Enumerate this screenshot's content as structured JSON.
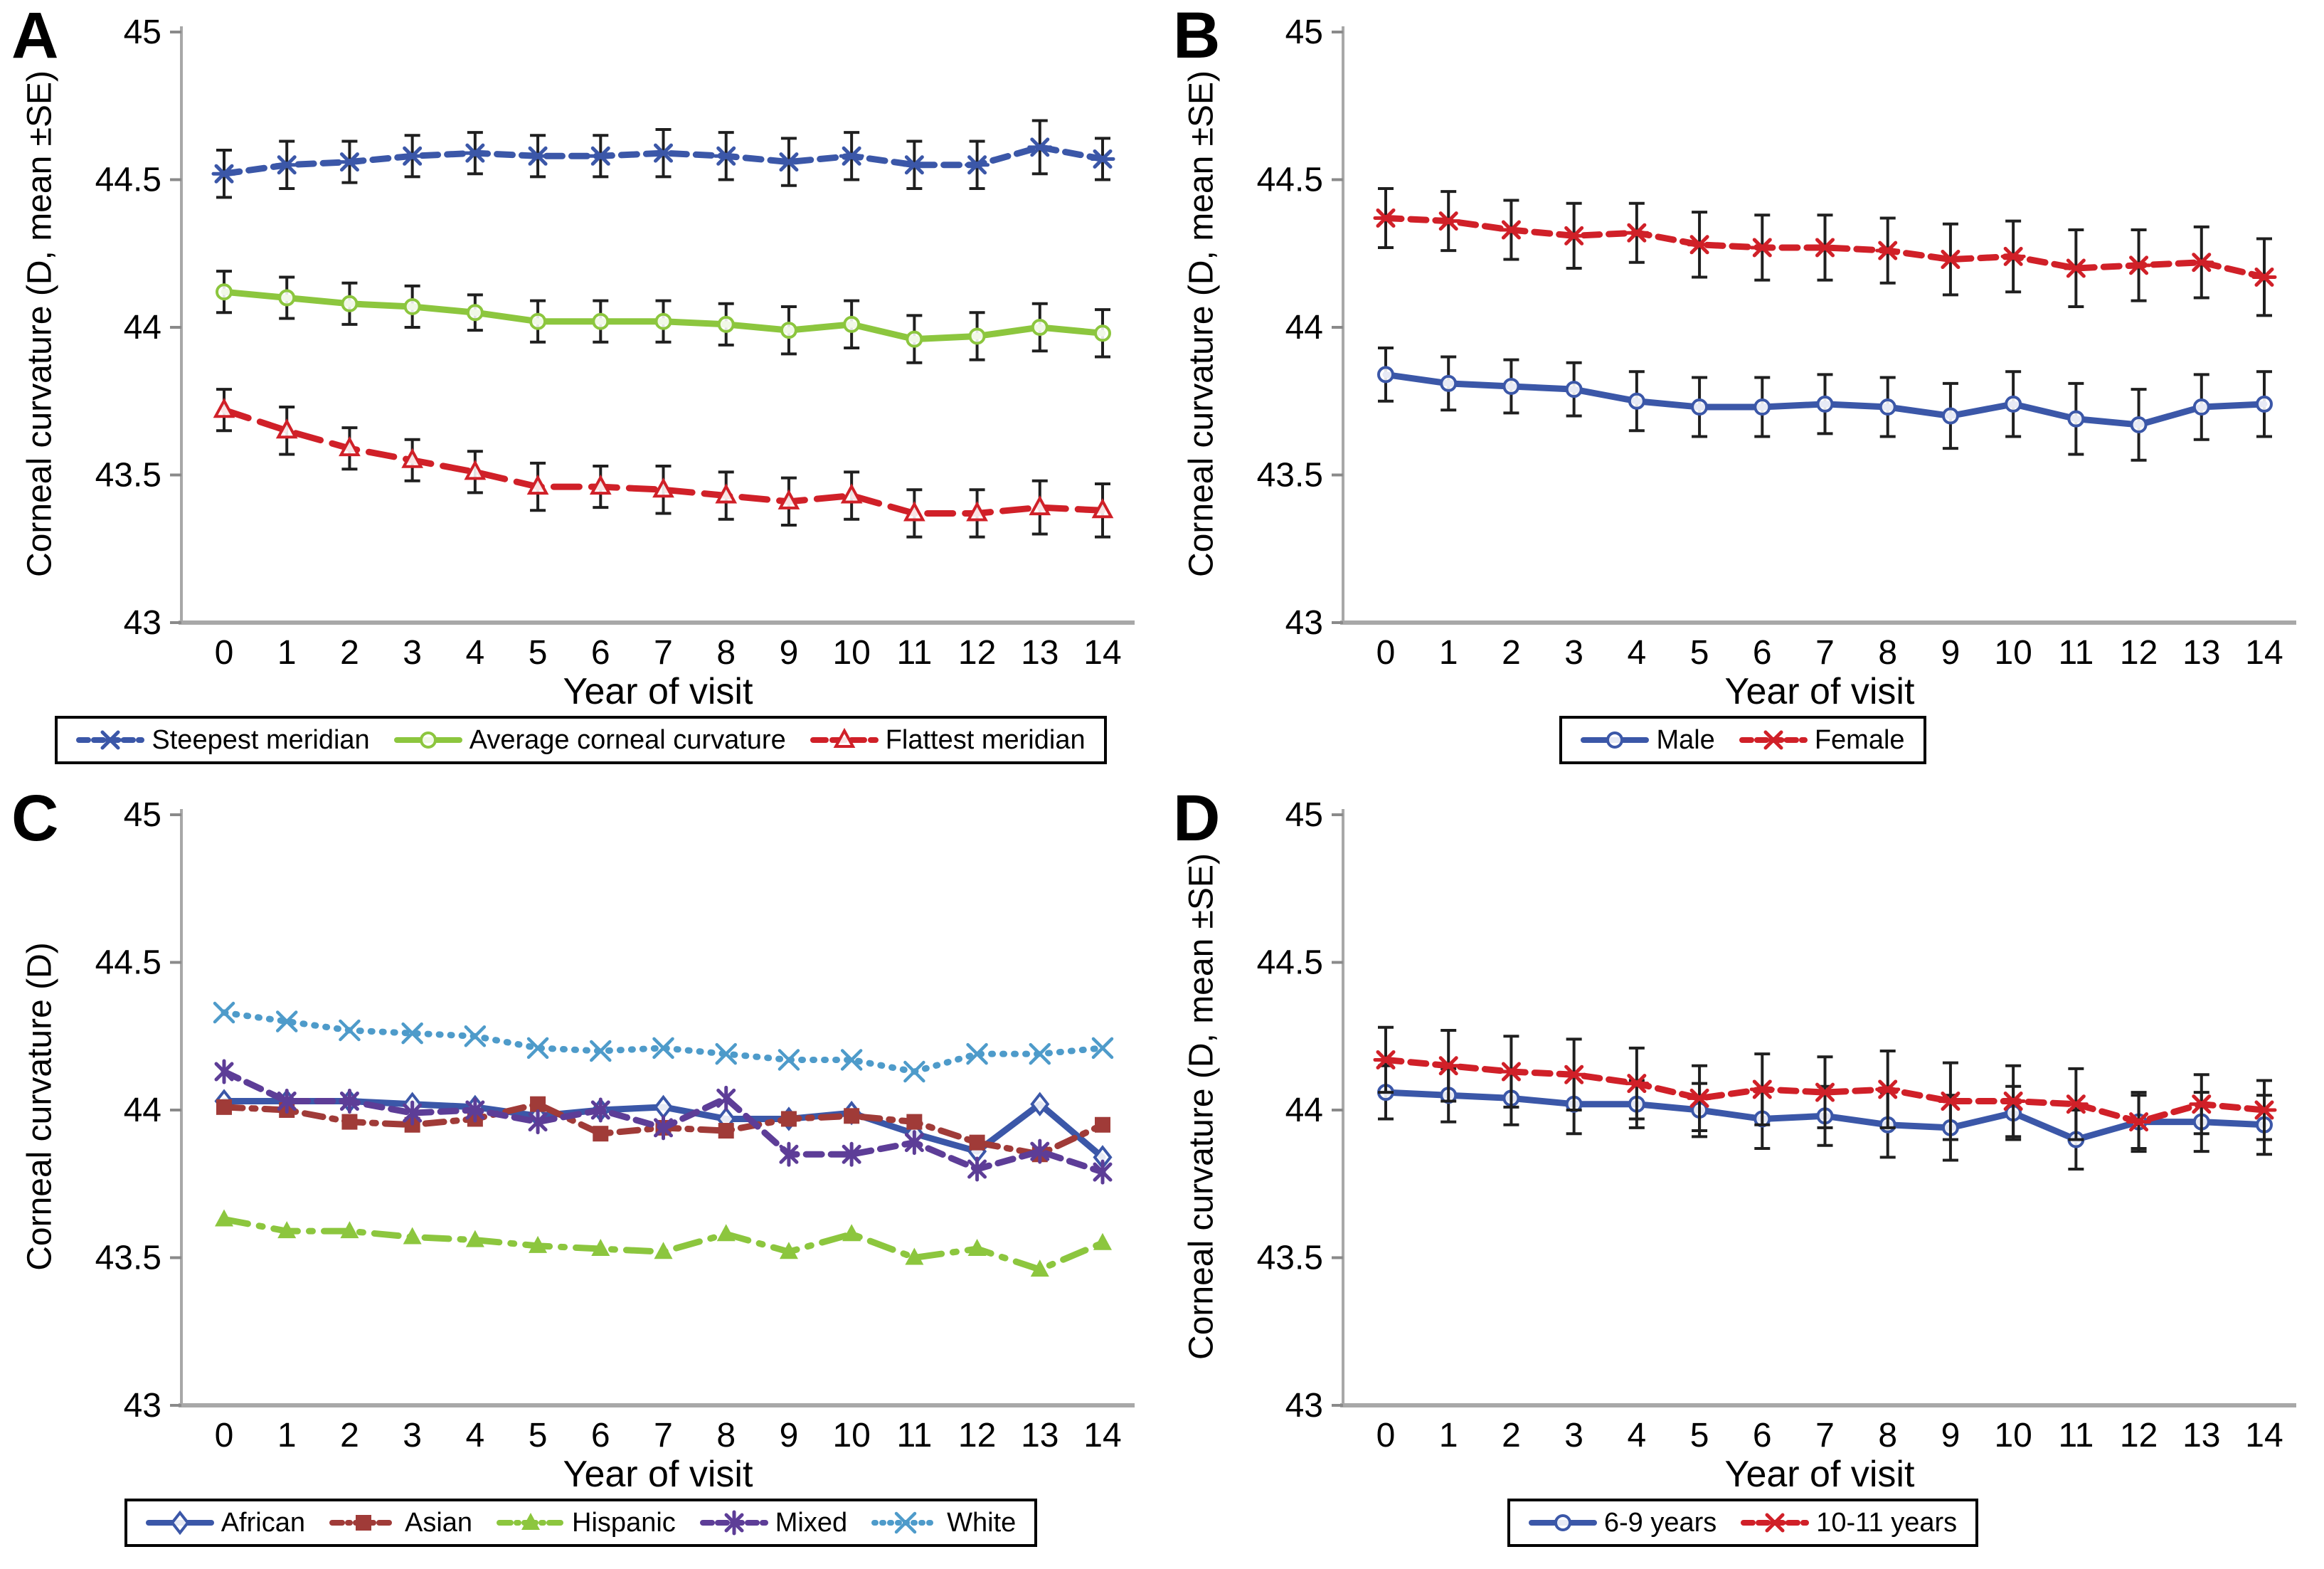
{
  "figure": {
    "xlabel": "Year of visit",
    "axis_color": "#a8a8a8",
    "errorbar_color": "#1f1f1f",
    "colors": {
      "blue": "#3b57a8",
      "green": "#8cc63e",
      "red": "#d02028",
      "brick": "#a03b38",
      "purple": "#5d3d97",
      "lightblue": "#4e9bca"
    }
  },
  "chart_data": [
    {
      "letter": "A",
      "type": "line",
      "ylabel": "Corneal curvature (D, mean ±SE)",
      "xlabel": "Year of visit",
      "ylim": [
        43,
        45
      ],
      "y_ticks": [
        "45",
        "44.5",
        "44",
        "43.5",
        "43"
      ],
      "x": [
        0,
        1,
        2,
        3,
        4,
        5,
        6,
        7,
        8,
        9,
        10,
        11,
        12,
        13,
        14
      ],
      "grid": false,
      "legend_position": "bottom",
      "series": [
        {
          "name": "Steepest meridian",
          "color": "#3b57a8",
          "dash": "dash",
          "marker": "asterisk-h",
          "values": [
            44.52,
            44.55,
            44.56,
            44.58,
            44.59,
            44.58,
            44.58,
            44.59,
            44.58,
            44.56,
            44.58,
            44.55,
            44.55,
            44.61,
            44.57
          ],
          "se": [
            0.08,
            0.08,
            0.07,
            0.07,
            0.07,
            0.07,
            0.07,
            0.08,
            0.08,
            0.08,
            0.08,
            0.08,
            0.08,
            0.09,
            0.07
          ]
        },
        {
          "name": "Average corneal curvature",
          "color": "#8cc63e",
          "dash": "solid",
          "marker": "circle",
          "values": [
            44.12,
            44.1,
            44.08,
            44.07,
            44.05,
            44.02,
            44.02,
            44.02,
            44.01,
            43.99,
            44.01,
            43.96,
            43.97,
            44.0,
            43.98
          ],
          "se": [
            0.07,
            0.07,
            0.07,
            0.07,
            0.06,
            0.07,
            0.07,
            0.07,
            0.07,
            0.08,
            0.08,
            0.08,
            0.08,
            0.08,
            0.08
          ]
        },
        {
          "name": "Flattest meridian",
          "color": "#d02028",
          "dash": "longdash",
          "marker": "triangle-open",
          "values": [
            43.72,
            43.65,
            43.59,
            43.55,
            43.51,
            43.46,
            43.46,
            43.45,
            43.43,
            43.41,
            43.43,
            43.37,
            43.37,
            43.39,
            43.38
          ],
          "se": [
            0.07,
            0.08,
            0.07,
            0.07,
            0.07,
            0.08,
            0.07,
            0.08,
            0.08,
            0.08,
            0.08,
            0.08,
            0.08,
            0.09,
            0.09
          ]
        }
      ]
    },
    {
      "letter": "B",
      "type": "line",
      "ylabel": "Corneal curvature (D, mean ±SE)",
      "xlabel": "Year of visit",
      "ylim": [
        43,
        45
      ],
      "y_ticks": [
        "45",
        "44.5",
        "44",
        "43.5",
        "43"
      ],
      "x": [
        0,
        1,
        2,
        3,
        4,
        5,
        6,
        7,
        8,
        9,
        10,
        11,
        12,
        13,
        14
      ],
      "grid": false,
      "legend_position": "bottom",
      "series": [
        {
          "name": "Male",
          "color": "#3b57a8",
          "dash": "solid",
          "marker": "circle",
          "values": [
            43.84,
            43.81,
            43.8,
            43.79,
            43.75,
            43.73,
            43.73,
            43.74,
            43.73,
            43.7,
            43.74,
            43.69,
            43.67,
            43.73,
            43.74
          ],
          "se": [
            0.09,
            0.09,
            0.09,
            0.09,
            0.1,
            0.1,
            0.1,
            0.1,
            0.1,
            0.11,
            0.11,
            0.12,
            0.12,
            0.11,
            0.11
          ]
        },
        {
          "name": "Female",
          "color": "#d02028",
          "dash": "dash",
          "marker": "asterisk-h",
          "values": [
            44.37,
            44.36,
            44.33,
            44.31,
            44.32,
            44.28,
            44.27,
            44.27,
            44.26,
            44.23,
            44.24,
            44.2,
            44.21,
            44.22,
            44.17
          ],
          "se": [
            0.1,
            0.1,
            0.1,
            0.11,
            0.1,
            0.11,
            0.11,
            0.11,
            0.11,
            0.12,
            0.12,
            0.13,
            0.12,
            0.12,
            0.13
          ]
        }
      ]
    },
    {
      "letter": "C",
      "type": "line",
      "ylabel": "Corneal curvature (D)",
      "xlabel": "Year of visit",
      "ylim": [
        43,
        45
      ],
      "y_ticks": [
        "45",
        "44.5",
        "44",
        "43.5",
        "43"
      ],
      "x": [
        0,
        1,
        2,
        3,
        4,
        5,
        6,
        7,
        8,
        9,
        10,
        11,
        12,
        13,
        14
      ],
      "grid": false,
      "legend_position": "bottom",
      "series": [
        {
          "name": "African",
          "color": "#3b57a8",
          "dash": "solid",
          "marker": "diamond-open",
          "values": [
            44.03,
            44.03,
            44.03,
            44.02,
            44.01,
            43.98,
            44.0,
            44.01,
            43.97,
            43.97,
            43.99,
            43.92,
            43.86,
            44.02,
            43.84
          ],
          "se": null
        },
        {
          "name": "Asian",
          "color": "#a03b38",
          "dash": "dashdot",
          "marker": "square",
          "values": [
            44.01,
            44.0,
            43.96,
            43.95,
            43.97,
            44.02,
            43.92,
            43.94,
            43.93,
            43.97,
            43.98,
            43.96,
            43.89,
            43.85,
            43.95
          ],
          "se": null
        },
        {
          "name": "Hispanic",
          "color": "#8cc63e",
          "dash": "longdashdot",
          "marker": "triangle",
          "values": [
            43.63,
            43.59,
            43.59,
            43.57,
            43.56,
            43.54,
            43.53,
            43.52,
            43.58,
            43.52,
            43.58,
            43.5,
            43.53,
            43.46,
            43.55
          ],
          "se": null
        },
        {
          "name": "Mixed",
          "color": "#5d3d97",
          "dash": "dash",
          "marker": "asterisk-v",
          "values": [
            44.13,
            44.03,
            44.03,
            43.99,
            44.0,
            43.96,
            44.0,
            43.94,
            44.04,
            43.85,
            43.85,
            43.89,
            43.8,
            43.86,
            43.79
          ],
          "se": null
        },
        {
          "name": "White",
          "color": "#4e9bca",
          "dash": "dot",
          "marker": "x",
          "values": [
            44.33,
            44.3,
            44.27,
            44.26,
            44.25,
            44.21,
            44.2,
            44.21,
            44.19,
            44.17,
            44.17,
            44.13,
            44.19,
            44.19,
            44.21
          ],
          "se": null
        }
      ]
    },
    {
      "letter": "D",
      "type": "line",
      "ylabel": "Corneal curvature (D, mean ±SE)",
      "xlabel": "Year of visit",
      "ylim": [
        43,
        45
      ],
      "y_ticks": [
        "45",
        "44.5",
        "44",
        "43.5",
        "43"
      ],
      "x": [
        0,
        1,
        2,
        3,
        4,
        5,
        6,
        7,
        8,
        9,
        10,
        11,
        12,
        13,
        14
      ],
      "grid": false,
      "legend_position": "bottom",
      "series": [
        {
          "name": "6-9 years",
          "color": "#3b57a8",
          "dash": "solid",
          "marker": "circle",
          "values": [
            44.06,
            44.05,
            44.04,
            44.02,
            44.02,
            44.0,
            43.97,
            43.98,
            43.95,
            43.94,
            43.99,
            43.9,
            43.96,
            43.96,
            43.95
          ],
          "se": [
            0.09,
            0.09,
            0.09,
            0.1,
            0.08,
            0.09,
            0.1,
            0.1,
            0.11,
            0.11,
            0.09,
            0.1,
            0.09,
            0.1,
            0.1
          ]
        },
        {
          "name": "10-11 years",
          "color": "#d02028",
          "dash": "dash",
          "marker": "asterisk-h",
          "values": [
            44.17,
            44.15,
            44.13,
            44.12,
            44.09,
            44.04,
            44.07,
            44.06,
            44.07,
            44.03,
            44.03,
            44.02,
            43.96,
            44.02,
            44.0
          ],
          "se": [
            0.11,
            0.12,
            0.12,
            0.12,
            0.12,
            0.11,
            0.12,
            0.12,
            0.13,
            0.13,
            0.12,
            0.12,
            0.1,
            0.1,
            0.1
          ]
        }
      ]
    }
  ]
}
